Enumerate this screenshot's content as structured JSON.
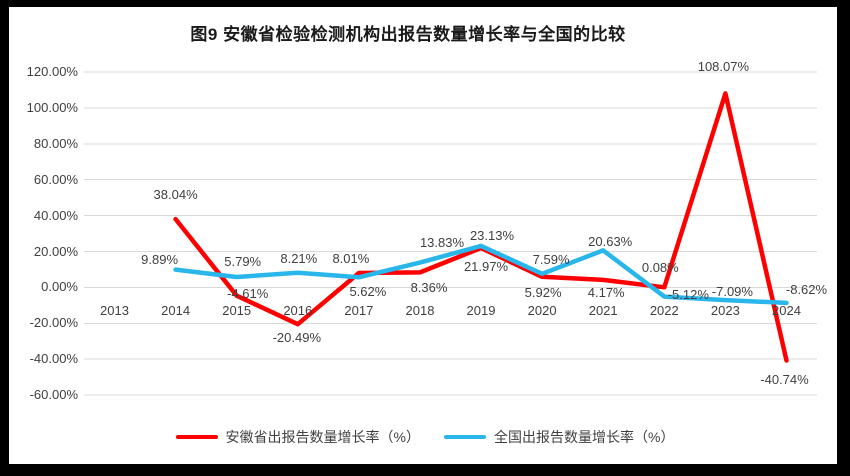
{
  "title": "图9 安徽省检验检测机构出报告数量增长率与全国的比较",
  "colors": {
    "anhui_line": "#FF0000",
    "national_line": "#29B6EB",
    "gridline": "#D9D9D9",
    "axis_text": "#404040",
    "label_text": "#404040",
    "title_text": "#1A1A1A",
    "frame": "#000000",
    "background": "#FFFFFF"
  },
  "chart_data": {
    "type": "line",
    "title": "图9 安徽省检验检测机构出报告数量增长率与全国的比较",
    "categories": [
      "2013",
      "2014",
      "2015",
      "2016",
      "2017",
      "2018",
      "2019",
      "2020",
      "2021",
      "2022",
      "2023",
      "2024"
    ],
    "xlabel": "",
    "ylabel": "",
    "ylim": [
      -60,
      120
    ],
    "y_tick_step": 20,
    "y_tick_labels": [
      "120.00%",
      "100.00%",
      "80.00%",
      "60.00%",
      "40.00%",
      "20.00%",
      "0.00%",
      "-20.00%",
      "-40.00%",
      "-60.00%"
    ],
    "grid": true,
    "legend_position": "bottom",
    "series": [
      {
        "name": "安徽省出报告数量增长率（%）",
        "color_key": "anhui_line",
        "values": [
          null,
          38.04,
          -4.61,
          -20.49,
          8.01,
          8.36,
          21.97,
          5.92,
          4.17,
          0.08,
          108.07,
          -40.74
        ],
        "labels": [
          "",
          "38.04%",
          "-4.61%",
          "-20.49%",
          "8.01%",
          "8.36%",
          "21.97%",
          "5.92%",
          "4.17%",
          "0.08%",
          "108.07%",
          "-40.74%"
        ],
        "label_offsets": [
          [
            0,
            0
          ],
          [
            0,
            -24
          ],
          [
            11,
            -2
          ],
          [
            -1,
            14
          ],
          [
            -8,
            -14
          ],
          [
            9,
            16
          ],
          [
            5,
            19
          ],
          [
            1,
            16
          ],
          [
            3,
            13
          ],
          [
            -4,
            -19
          ],
          [
            -2,
            -26
          ],
          [
            -2,
            19
          ]
        ]
      },
      {
        "name": "全国出报告数量增长率（%）",
        "color_key": "national_line",
        "values": [
          null,
          9.89,
          5.79,
          8.21,
          5.62,
          13.83,
          23.13,
          7.59,
          20.63,
          -5.12,
          -7.09,
          -8.62
        ],
        "labels": [
          "",
          "9.89%",
          "5.79%",
          "8.21%",
          "5.62%",
          "13.83%",
          "23.13%",
          "7.59%",
          "20.63%",
          "-5.12%",
          "-7.09%",
          "-8.62%"
        ],
        "label_offsets": [
          [
            0,
            0
          ],
          [
            -16,
            -10
          ],
          [
            6,
            -15
          ],
          [
            1,
            -14
          ],
          [
            9,
            15
          ],
          [
            22,
            -20
          ],
          [
            11,
            -10
          ],
          [
            9,
            -14
          ],
          [
            7,
            -8
          ],
          [
            24,
            -2
          ],
          [
            7,
            -8
          ],
          [
            20,
            -13
          ]
        ]
      }
    ]
  }
}
